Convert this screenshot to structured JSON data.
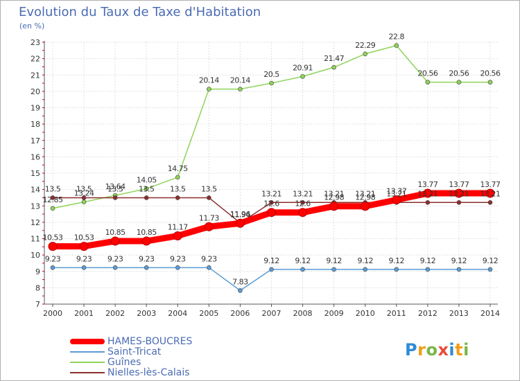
{
  "chart_data": {
    "type": "line",
    "title": "Evolution du Taux de Taxe d'Habitation",
    "unit": "(en %)",
    "x": [
      "2000",
      "2001",
      "2002",
      "2003",
      "2004",
      "2005",
      "2006",
      "2007",
      "2008",
      "2009",
      "2010",
      "2011",
      "2012",
      "2013",
      "2014"
    ],
    "ylim": [
      7,
      23
    ],
    "yticks": [
      "7",
      "8",
      "9",
      "10",
      "11",
      "12",
      "13",
      "14",
      "15",
      "16",
      "17",
      "18",
      "19",
      "20",
      "21",
      "22",
      "23"
    ],
    "grid": true,
    "legend_position": "bottom-left",
    "series": [
      {
        "name": "HAMES-BOUCRES",
        "color": "#ff0000",
        "values": [
          10.53,
          10.53,
          10.85,
          10.85,
          11.17,
          11.73,
          11.94,
          12.6,
          12.6,
          12.98,
          12.98,
          13.37,
          13.77,
          13.77,
          13.77
        ],
        "labels": [
          "10.53",
          "10.53",
          "10.85",
          "10.85",
          "11.17",
          "11.73",
          "11.94",
          "12.6",
          "12.6",
          "12.98",
          "12.98",
          "13.37",
          "13.77",
          "13.77",
          "13.77"
        ]
      },
      {
        "name": "Saint-Tricat",
        "color": "#5b9bd5",
        "values": [
          9.23,
          9.23,
          9.23,
          9.23,
          9.23,
          9.23,
          7.83,
          9.12,
          9.12,
          9.12,
          9.12,
          9.12,
          9.12,
          9.12,
          9.12
        ],
        "labels": [
          "9.23",
          "9.23",
          "9.23",
          "9.23",
          "9.23",
          "9.23",
          "7.83",
          "9.12",
          "9.12",
          "9.12",
          "9.12",
          "9.12",
          "9.12",
          "9.12",
          "9.12"
        ]
      },
      {
        "name": "Guînes",
        "color": "#8fd35a",
        "values": [
          12.85,
          13.24,
          13.64,
          14.05,
          14.75,
          20.14,
          20.14,
          20.5,
          20.91,
          21.47,
          22.29,
          22.8,
          20.56,
          20.56,
          20.56
        ],
        "labels": [
          "12.85",
          "13.24",
          "13.64",
          "14.05",
          "14.75",
          "20.14",
          "20.14",
          "20.5",
          "20.91",
          "21.47",
          "22.29",
          "22.8",
          "20.56",
          "20.56",
          "20.56"
        ]
      },
      {
        "name": "Nielles-lès-Calais",
        "color": "#8b2e2e",
        "values": [
          13.5,
          13.5,
          13.5,
          13.5,
          13.5,
          13.5,
          11.96,
          13.21,
          13.21,
          13.21,
          13.21,
          13.21,
          13.21,
          13.21,
          13.21
        ],
        "labels": [
          "13.5",
          "13.5",
          "13.5",
          "13.5",
          "13.5",
          "13.5",
          "11.96",
          "13.21",
          "13.21",
          "13.21",
          "13.21",
          "13.21",
          "13.21",
          "13.21",
          "13.21"
        ]
      }
    ]
  },
  "legend": {
    "items": [
      {
        "label": "HAMES-BOUCRES",
        "color": "#ff0000"
      },
      {
        "label": "Saint-Tricat",
        "color": "#5b9bd5"
      },
      {
        "label": "Guînes",
        "color": "#8fd35a"
      },
      {
        "label": "Nielles-lès-Calais",
        "color": "#8b2e2e"
      }
    ]
  },
  "brand": {
    "letters": [
      "P",
      "r",
      "o",
      "x",
      "i",
      "t",
      "i"
    ],
    "colors": [
      "#2e8bd6",
      "#f39c12",
      "#7ab648",
      "#e74c3c",
      "#2e8bd6",
      "#f39c12",
      "#7ab648"
    ]
  }
}
